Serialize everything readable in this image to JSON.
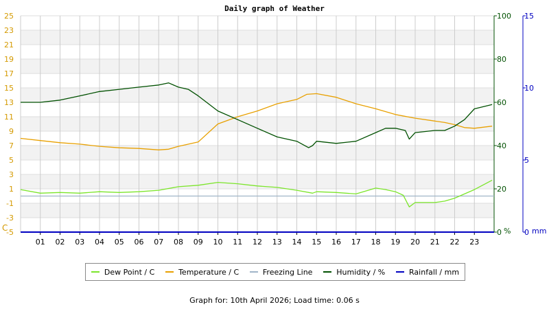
{
  "chart_data": {
    "type": "line",
    "title": "Daily graph of Weather",
    "left_axis": {
      "unit": "C",
      "min": -5,
      "max": 25,
      "ticks": [
        -5,
        -3,
        -1,
        1,
        3,
        5,
        7,
        9,
        11,
        13,
        15,
        17,
        19,
        21,
        23,
        25
      ]
    },
    "right_axis_percent": {
      "unit": "%",
      "min": 0,
      "max": 100,
      "ticks": [
        0,
        20,
        40,
        60,
        80,
        100
      ]
    },
    "right_axis_mm": {
      "unit": "mm",
      "min": 0,
      "max": 15,
      "ticks": [
        0,
        5,
        10,
        15
      ]
    },
    "x_ticks": [
      "01",
      "02",
      "03",
      "04",
      "05",
      "06",
      "07",
      "08",
      "09",
      "10",
      "11",
      "12",
      "13",
      "14",
      "15",
      "16",
      "17",
      "18",
      "19",
      "20",
      "21",
      "22",
      "23"
    ],
    "x_range": [
      0,
      24
    ],
    "grid": true,
    "legend_position": "bottom",
    "series": [
      {
        "name": "Dew Point / C",
        "color": "#7be52a",
        "axis": "left",
        "x": [
          0,
          1,
          2,
          3,
          4,
          5,
          6,
          7,
          8,
          9,
          10,
          10.5,
          11,
          12,
          13,
          14,
          14.8,
          15,
          16,
          17,
          18,
          18.5,
          19,
          19.4,
          19.7,
          20,
          21,
          21.5,
          22,
          23,
          23.9
        ],
        "y": [
          0.9,
          0.4,
          0.5,
          0.4,
          0.6,
          0.5,
          0.6,
          0.8,
          1.3,
          1.5,
          1.9,
          1.8,
          1.7,
          1.4,
          1.2,
          0.8,
          0.4,
          0.6,
          0.5,
          0.3,
          1.1,
          0.9,
          0.6,
          0.1,
          -1.5,
          -0.9,
          -0.9,
          -0.7,
          -0.3,
          0.9,
          2.2
        ]
      },
      {
        "name": "Temperature / C",
        "color": "#e8a000",
        "axis": "left",
        "x": [
          0,
          1,
          2,
          3,
          4,
          5,
          6,
          7,
          7.5,
          8,
          9,
          10,
          11,
          12,
          13,
          14,
          14.5,
          15,
          16,
          17,
          18,
          19,
          20,
          21,
          21.5,
          22,
          22.5,
          23,
          23.9
        ],
        "y": [
          8.0,
          7.7,
          7.4,
          7.2,
          6.9,
          6.7,
          6.6,
          6.4,
          6.5,
          6.9,
          7.5,
          10.0,
          11.0,
          11.8,
          12.8,
          13.4,
          14.1,
          14.2,
          13.7,
          12.8,
          12.1,
          11.3,
          10.8,
          10.4,
          10.2,
          9.9,
          9.5,
          9.4,
          9.7
        ]
      },
      {
        "name": "Freezing Line",
        "color": "#a0b4c8",
        "axis": "left",
        "x": [
          0,
          24
        ],
        "y": [
          0,
          0
        ]
      },
      {
        "name": "Humidity / %",
        "color": "#005000",
        "axis": "right_percent",
        "x": [
          0,
          1,
          2,
          3,
          4,
          5,
          6,
          7,
          7.5,
          8,
          8.5,
          9,
          10,
          11,
          12,
          13,
          14,
          14.6,
          14.8,
          15,
          16,
          17,
          18,
          18.5,
          19,
          19.5,
          19.7,
          20,
          21,
          21.5,
          22,
          22.5,
          23,
          23.9
        ],
        "y": [
          60,
          60,
          61,
          63,
          65,
          66,
          67,
          68,
          69,
          67,
          66,
          63,
          56,
          52,
          48,
          44,
          42,
          39,
          40,
          42,
          41,
          42,
          46,
          48,
          48,
          47,
          43,
          46,
          47,
          47,
          49,
          52,
          57,
          59
        ]
      },
      {
        "name": "Rainfall / mm",
        "color": "#0000c0",
        "axis": "right_mm",
        "x": [
          0,
          24
        ],
        "y": [
          0,
          0
        ]
      }
    ]
  },
  "footer_text": "Graph for: 10th April 2026; Load time: 0.06 s"
}
